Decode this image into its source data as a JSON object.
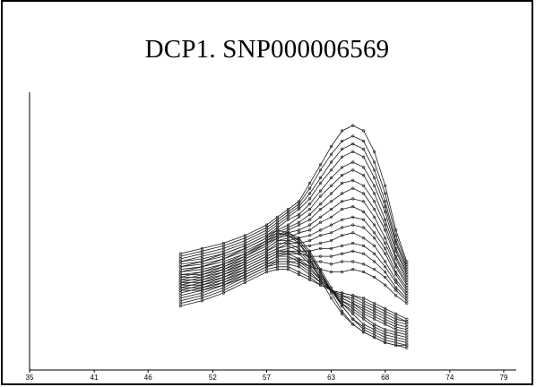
{
  "slide": {
    "title": "DCP1. SNP000006569"
  },
  "chart_data": {
    "type": "line",
    "title": "DCP1. SNP000006569",
    "xlabel": "",
    "ylabel": "",
    "xlim": [
      35,
      80.5
    ],
    "ylim": [
      0,
      1
    ],
    "x_ticks": [
      35,
      41,
      46,
      52,
      57,
      63,
      68,
      74,
      79
    ],
    "grid": false,
    "legend": "none",
    "x": [
      49,
      51,
      53,
      55,
      57,
      58,
      59,
      60,
      61,
      62,
      63,
      64,
      65,
      66,
      67,
      68,
      69,
      70
    ],
    "series": [
      {
        "values": [
          0.4,
          0.42,
          0.44,
          0.47,
          0.51,
          0.54,
          0.57,
          0.6,
          0.67,
          0.74,
          0.81,
          0.87,
          0.89,
          0.87,
          0.79,
          0.66,
          0.49,
          0.37
        ]
      },
      {
        "values": [
          0.39,
          0.41,
          0.43,
          0.46,
          0.5,
          0.53,
          0.56,
          0.59,
          0.65,
          0.72,
          0.78,
          0.83,
          0.85,
          0.83,
          0.75,
          0.63,
          0.47,
          0.36
        ]
      },
      {
        "values": [
          0.38,
          0.4,
          0.42,
          0.45,
          0.49,
          0.52,
          0.55,
          0.58,
          0.63,
          0.69,
          0.75,
          0.8,
          0.82,
          0.8,
          0.72,
          0.6,
          0.45,
          0.35
        ]
      },
      {
        "values": [
          0.37,
          0.39,
          0.41,
          0.44,
          0.48,
          0.51,
          0.54,
          0.57,
          0.61,
          0.67,
          0.72,
          0.77,
          0.79,
          0.77,
          0.69,
          0.58,
          0.44,
          0.34
        ]
      },
      {
        "values": [
          0.37,
          0.38,
          0.4,
          0.43,
          0.47,
          0.5,
          0.53,
          0.55,
          0.59,
          0.64,
          0.69,
          0.73,
          0.75,
          0.73,
          0.66,
          0.56,
          0.42,
          0.33
        ]
      },
      {
        "values": [
          0.36,
          0.37,
          0.39,
          0.42,
          0.46,
          0.49,
          0.51,
          0.54,
          0.57,
          0.62,
          0.66,
          0.7,
          0.72,
          0.7,
          0.63,
          0.53,
          0.41,
          0.32
        ]
      },
      {
        "values": [
          0.35,
          0.36,
          0.38,
          0.41,
          0.45,
          0.48,
          0.5,
          0.52,
          0.55,
          0.59,
          0.63,
          0.67,
          0.68,
          0.66,
          0.6,
          0.51,
          0.39,
          0.31
        ]
      },
      {
        "values": [
          0.34,
          0.35,
          0.37,
          0.4,
          0.44,
          0.47,
          0.49,
          0.51,
          0.53,
          0.57,
          0.6,
          0.63,
          0.65,
          0.63,
          0.57,
          0.49,
          0.38,
          0.3
        ]
      },
      {
        "values": [
          0.33,
          0.34,
          0.36,
          0.39,
          0.43,
          0.46,
          0.48,
          0.49,
          0.51,
          0.54,
          0.57,
          0.6,
          0.61,
          0.6,
          0.54,
          0.46,
          0.36,
          0.29
        ]
      },
      {
        "values": [
          0.32,
          0.33,
          0.35,
          0.38,
          0.42,
          0.45,
          0.46,
          0.48,
          0.49,
          0.52,
          0.54,
          0.57,
          0.58,
          0.56,
          0.51,
          0.44,
          0.35,
          0.28
        ]
      },
      {
        "values": [
          0.32,
          0.32,
          0.34,
          0.37,
          0.41,
          0.43,
          0.45,
          0.46,
          0.47,
          0.49,
          0.51,
          0.53,
          0.54,
          0.53,
          0.48,
          0.42,
          0.33,
          0.27
        ]
      },
      {
        "values": [
          0.31,
          0.31,
          0.33,
          0.36,
          0.4,
          0.42,
          0.44,
          0.44,
          0.45,
          0.47,
          0.48,
          0.5,
          0.51,
          0.5,
          0.46,
          0.4,
          0.32,
          0.26
        ]
      },
      {
        "values": [
          0.3,
          0.3,
          0.32,
          0.35,
          0.39,
          0.41,
          0.42,
          0.43,
          0.43,
          0.44,
          0.45,
          0.47,
          0.48,
          0.46,
          0.43,
          0.37,
          0.3,
          0.25
        ]
      },
      {
        "values": [
          0.29,
          0.29,
          0.31,
          0.34,
          0.38,
          0.4,
          0.41,
          0.41,
          0.41,
          0.42,
          0.42,
          0.43,
          0.44,
          0.43,
          0.4,
          0.35,
          0.29,
          0.24
        ]
      },
      {
        "values": [
          0.28,
          0.28,
          0.3,
          0.33,
          0.37,
          0.39,
          0.4,
          0.4,
          0.39,
          0.39,
          0.39,
          0.4,
          0.41,
          0.4,
          0.37,
          0.33,
          0.27,
          0.23
        ]
      },
      {
        "values": [
          0.27,
          0.27,
          0.29,
          0.32,
          0.36,
          0.38,
          0.38,
          0.38,
          0.37,
          0.37,
          0.36,
          0.37,
          0.37,
          0.36,
          0.34,
          0.31,
          0.26,
          0.22
        ]
      },
      {
        "values": [
          0.26,
          0.26,
          0.28,
          0.31,
          0.35,
          0.37,
          0.37,
          0.37,
          0.35,
          0.34,
          0.33,
          0.33,
          0.34,
          0.33,
          0.31,
          0.28,
          0.24,
          0.21
        ]
      },
      {
        "values": [
          0.31,
          0.33,
          0.36,
          0.4,
          0.45,
          0.47,
          0.48,
          0.46,
          0.41,
          0.34,
          0.27,
          0.2,
          0.15,
          0.11,
          0.09,
          0.07,
          0.06,
          0.05
        ]
      },
      {
        "values": [
          0.3,
          0.32,
          0.35,
          0.39,
          0.44,
          0.46,
          0.47,
          0.45,
          0.4,
          0.33,
          0.26,
          0.2,
          0.15,
          0.12,
          0.1,
          0.08,
          0.07,
          0.06
        ]
      },
      {
        "values": [
          0.29,
          0.31,
          0.34,
          0.38,
          0.42,
          0.45,
          0.45,
          0.44,
          0.39,
          0.33,
          0.26,
          0.21,
          0.17,
          0.13,
          0.11,
          0.09,
          0.08,
          0.07
        ]
      },
      {
        "values": [
          0.28,
          0.3,
          0.33,
          0.37,
          0.41,
          0.44,
          0.44,
          0.42,
          0.38,
          0.32,
          0.26,
          0.21,
          0.18,
          0.15,
          0.12,
          0.1,
          0.09,
          0.08
        ]
      },
      {
        "values": [
          0.27,
          0.29,
          0.32,
          0.36,
          0.4,
          0.42,
          0.43,
          0.41,
          0.37,
          0.31,
          0.26,
          0.22,
          0.19,
          0.16,
          0.13,
          0.11,
          0.1,
          0.09
        ]
      },
      {
        "values": [
          0.26,
          0.28,
          0.31,
          0.35,
          0.39,
          0.41,
          0.41,
          0.4,
          0.36,
          0.31,
          0.26,
          0.22,
          0.2,
          0.17,
          0.15,
          0.13,
          0.11,
          0.1
        ]
      },
      {
        "values": [
          0.25,
          0.27,
          0.3,
          0.34,
          0.38,
          0.4,
          0.4,
          0.38,
          0.35,
          0.3,
          0.26,
          0.23,
          0.21,
          0.18,
          0.16,
          0.14,
          0.12,
          0.11
        ]
      },
      {
        "values": [
          0.24,
          0.26,
          0.29,
          0.33,
          0.37,
          0.39,
          0.39,
          0.37,
          0.34,
          0.3,
          0.26,
          0.23,
          0.21,
          0.19,
          0.17,
          0.15,
          0.13,
          0.12
        ]
      },
      {
        "values": [
          0.23,
          0.25,
          0.28,
          0.32,
          0.36,
          0.37,
          0.37,
          0.36,
          0.33,
          0.29,
          0.26,
          0.24,
          0.22,
          0.2,
          0.18,
          0.16,
          0.14,
          0.13
        ]
      },
      {
        "values": [
          0.22,
          0.24,
          0.27,
          0.31,
          0.35,
          0.36,
          0.36,
          0.35,
          0.32,
          0.29,
          0.26,
          0.24,
          0.23,
          0.21,
          0.19,
          0.17,
          0.15,
          0.14
        ]
      },
      {
        "values": [
          0.21,
          0.23,
          0.26,
          0.3,
          0.34,
          0.35,
          0.35,
          0.33,
          0.31,
          0.28,
          0.26,
          0.25,
          0.24,
          0.22,
          0.2,
          0.18,
          0.16,
          0.14
        ]
      },
      {
        "values": [
          0.2,
          0.22,
          0.25,
          0.29,
          0.33,
          0.34,
          0.34,
          0.32,
          0.3,
          0.28,
          0.26,
          0.25,
          0.24,
          0.23,
          0.21,
          0.19,
          0.17,
          0.15
        ]
      },
      {
        "values": [
          0.33,
          0.35,
          0.38,
          0.42,
          0.46,
          0.48,
          0.47,
          0.44,
          0.38,
          0.3,
          0.23,
          0.17,
          0.13,
          0.1,
          0.08,
          0.06,
          0.05,
          0.04
        ]
      },
      {
        "values": [
          0.35,
          0.37,
          0.4,
          0.43,
          0.47,
          0.49,
          0.48,
          0.45,
          0.4,
          0.33,
          0.25,
          0.18,
          0.13,
          0.1,
          0.08,
          0.06,
          0.05,
          0.05
        ]
      }
    ]
  }
}
